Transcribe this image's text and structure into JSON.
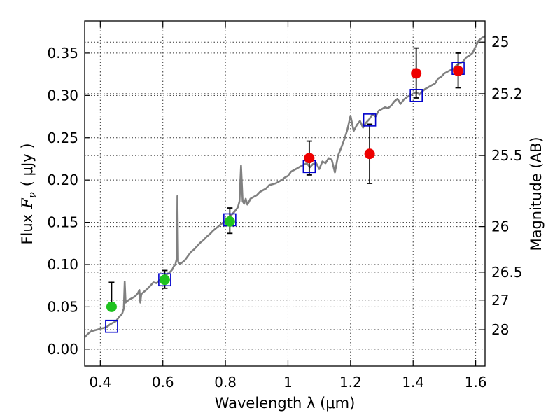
{
  "chart_data": {
    "type": "scatter",
    "xlabel": "Wavelength  λ (μm)",
    "ylabel_prefix": "Flux",
    "ylabel_symbol": "F",
    "ylabel_sub": "ν",
    "ylabel_units": "( μJy )",
    "y2label": "Magnitude (AB)",
    "xlim": [
      0.35,
      1.63
    ],
    "ylim": [
      -0.02,
      0.388
    ],
    "x_ticks": [
      0.4,
      0.6,
      0.8,
      1.0,
      1.2,
      1.4,
      1.6
    ],
    "x_tick_labels": [
      "0.4",
      "0.6",
      "0.8",
      "1",
      "1.2",
      "1.4",
      "1.6"
    ],
    "y_ticks": [
      0.0,
      0.05,
      0.1,
      0.15,
      0.2,
      0.25,
      0.3,
      0.35
    ],
    "y_tick_labels": [
      "0.00",
      "0.05",
      "0.10",
      "0.15",
      "0.20",
      "0.25",
      "0.30",
      "0.35"
    ],
    "y2_ticks": [
      {
        "label": "25",
        "flux": 0.363
      },
      {
        "label": "25.2",
        "flux": 0.302
      },
      {
        "label": "25.5",
        "flux": 0.229
      },
      {
        "label": "26",
        "flux": 0.145
      },
      {
        "label": "26.5",
        "flux": 0.091
      },
      {
        "label": "27",
        "flux": 0.058
      },
      {
        "label": "28",
        "flux": 0.023
      }
    ],
    "grid": true,
    "colors": {
      "model": "#808080",
      "green": "#1fc21f",
      "red": "#ee0000",
      "squares": "#0000cc",
      "errorbar": "#000000"
    },
    "model_spectrum": {
      "x": [
        0.35,
        0.36,
        0.37,
        0.38,
        0.39,
        0.4,
        0.41,
        0.42,
        0.43,
        0.44,
        0.45,
        0.46,
        0.47,
        0.475,
        0.478,
        0.481,
        0.49,
        0.5,
        0.51,
        0.52,
        0.525,
        0.528,
        0.531,
        0.54,
        0.55,
        0.56,
        0.57,
        0.58,
        0.59,
        0.6,
        0.61,
        0.62,
        0.63,
        0.635,
        0.64,
        0.645,
        0.6465,
        0.649,
        0.655,
        0.66,
        0.67,
        0.68,
        0.69,
        0.7,
        0.71,
        0.72,
        0.73,
        0.74,
        0.75,
        0.76,
        0.77,
        0.78,
        0.79,
        0.8,
        0.81,
        0.82,
        0.83,
        0.84,
        0.845,
        0.85,
        0.855,
        0.86,
        0.865,
        0.87,
        0.875,
        0.88,
        0.89,
        0.9,
        0.91,
        0.92,
        0.93,
        0.94,
        0.95,
        0.96,
        0.97,
        0.98,
        0.99,
        1.0,
        1.01,
        1.02,
        1.03,
        1.04,
        1.05,
        1.06,
        1.07,
        1.08,
        1.09,
        1.1,
        1.11,
        1.12,
        1.13,
        1.14,
        1.15,
        1.16,
        1.17,
        1.18,
        1.19,
        1.2,
        1.21,
        1.22,
        1.23,
        1.24,
        1.25,
        1.26,
        1.27,
        1.28,
        1.29,
        1.3,
        1.31,
        1.32,
        1.33,
        1.34,
        1.35,
        1.36,
        1.37,
        1.38,
        1.39,
        1.4,
        1.41,
        1.42,
        1.43,
        1.44,
        1.45,
        1.46,
        1.47,
        1.48,
        1.49,
        1.5,
        1.51,
        1.52,
        1.53,
        1.54,
        1.55,
        1.56,
        1.57,
        1.58,
        1.59,
        1.6,
        1.61,
        1.62,
        1.63
      ],
      "y": [
        0.014,
        0.018,
        0.021,
        0.022,
        0.023,
        0.024,
        0.025,
        0.026,
        0.029,
        0.031,
        0.033,
        0.038,
        0.042,
        0.048,
        0.08,
        0.055,
        0.058,
        0.06,
        0.062,
        0.066,
        0.07,
        0.055,
        0.065,
        0.068,
        0.071,
        0.075,
        0.079,
        0.078,
        0.082,
        0.085,
        0.088,
        0.09,
        0.094,
        0.098,
        0.1,
        0.108,
        0.181,
        0.103,
        0.101,
        0.102,
        0.105,
        0.11,
        0.115,
        0.118,
        0.122,
        0.126,
        0.129,
        0.133,
        0.136,
        0.14,
        0.143,
        0.146,
        0.149,
        0.152,
        0.156,
        0.159,
        0.163,
        0.168,
        0.175,
        0.217,
        0.175,
        0.172,
        0.178,
        0.171,
        0.174,
        0.178,
        0.18,
        0.182,
        0.186,
        0.188,
        0.19,
        0.194,
        0.195,
        0.196,
        0.198,
        0.2,
        0.203,
        0.205,
        0.21,
        0.212,
        0.214,
        0.216,
        0.218,
        0.22,
        0.215,
        0.219,
        0.22,
        0.213,
        0.222,
        0.22,
        0.226,
        0.224,
        0.209,
        0.229,
        0.238,
        0.248,
        0.26,
        0.276,
        0.258,
        0.265,
        0.27,
        0.262,
        0.268,
        0.272,
        0.278,
        0.275,
        0.282,
        0.284,
        0.286,
        0.285,
        0.288,
        0.293,
        0.296,
        0.29,
        0.295,
        0.298,
        0.3,
        0.302,
        0.304,
        0.301,
        0.305,
        0.308,
        0.31,
        0.312,
        0.314,
        0.32,
        0.322,
        0.326,
        0.328,
        0.33,
        0.332,
        0.336,
        0.338,
        0.34,
        0.345,
        0.347,
        0.35,
        0.358,
        0.365,
        0.368,
        0.37
      ]
    },
    "green_points": [
      {
        "x": 0.436,
        "y": 0.05,
        "err_lo": 0.05,
        "err_hi": 0.079
      },
      {
        "x": 0.606,
        "y": 0.082,
        "err_lo": 0.072,
        "err_hi": 0.093
      },
      {
        "x": 0.814,
        "y": 0.151,
        "err_lo": 0.137,
        "err_hi": 0.167
      }
    ],
    "red_points": [
      {
        "x": 1.068,
        "y": 0.226,
        "err_lo": 0.206,
        "err_hi": 0.246
      },
      {
        "x": 1.261,
        "y": 0.231,
        "err_lo": 0.196,
        "err_hi": 0.266
      },
      {
        "x": 1.41,
        "y": 0.326,
        "err_lo": 0.297,
        "err_hi": 0.356
      },
      {
        "x": 1.544,
        "y": 0.329,
        "err_lo": 0.309,
        "err_hi": 0.35
      }
    ],
    "model_points": [
      {
        "x": 0.436,
        "y": 0.027
      },
      {
        "x": 0.606,
        "y": 0.082
      },
      {
        "x": 0.814,
        "y": 0.153
      },
      {
        "x": 1.068,
        "y": 0.216
      },
      {
        "x": 1.261,
        "y": 0.271
      },
      {
        "x": 1.41,
        "y": 0.3
      },
      {
        "x": 1.544,
        "y": 0.332
      }
    ]
  }
}
